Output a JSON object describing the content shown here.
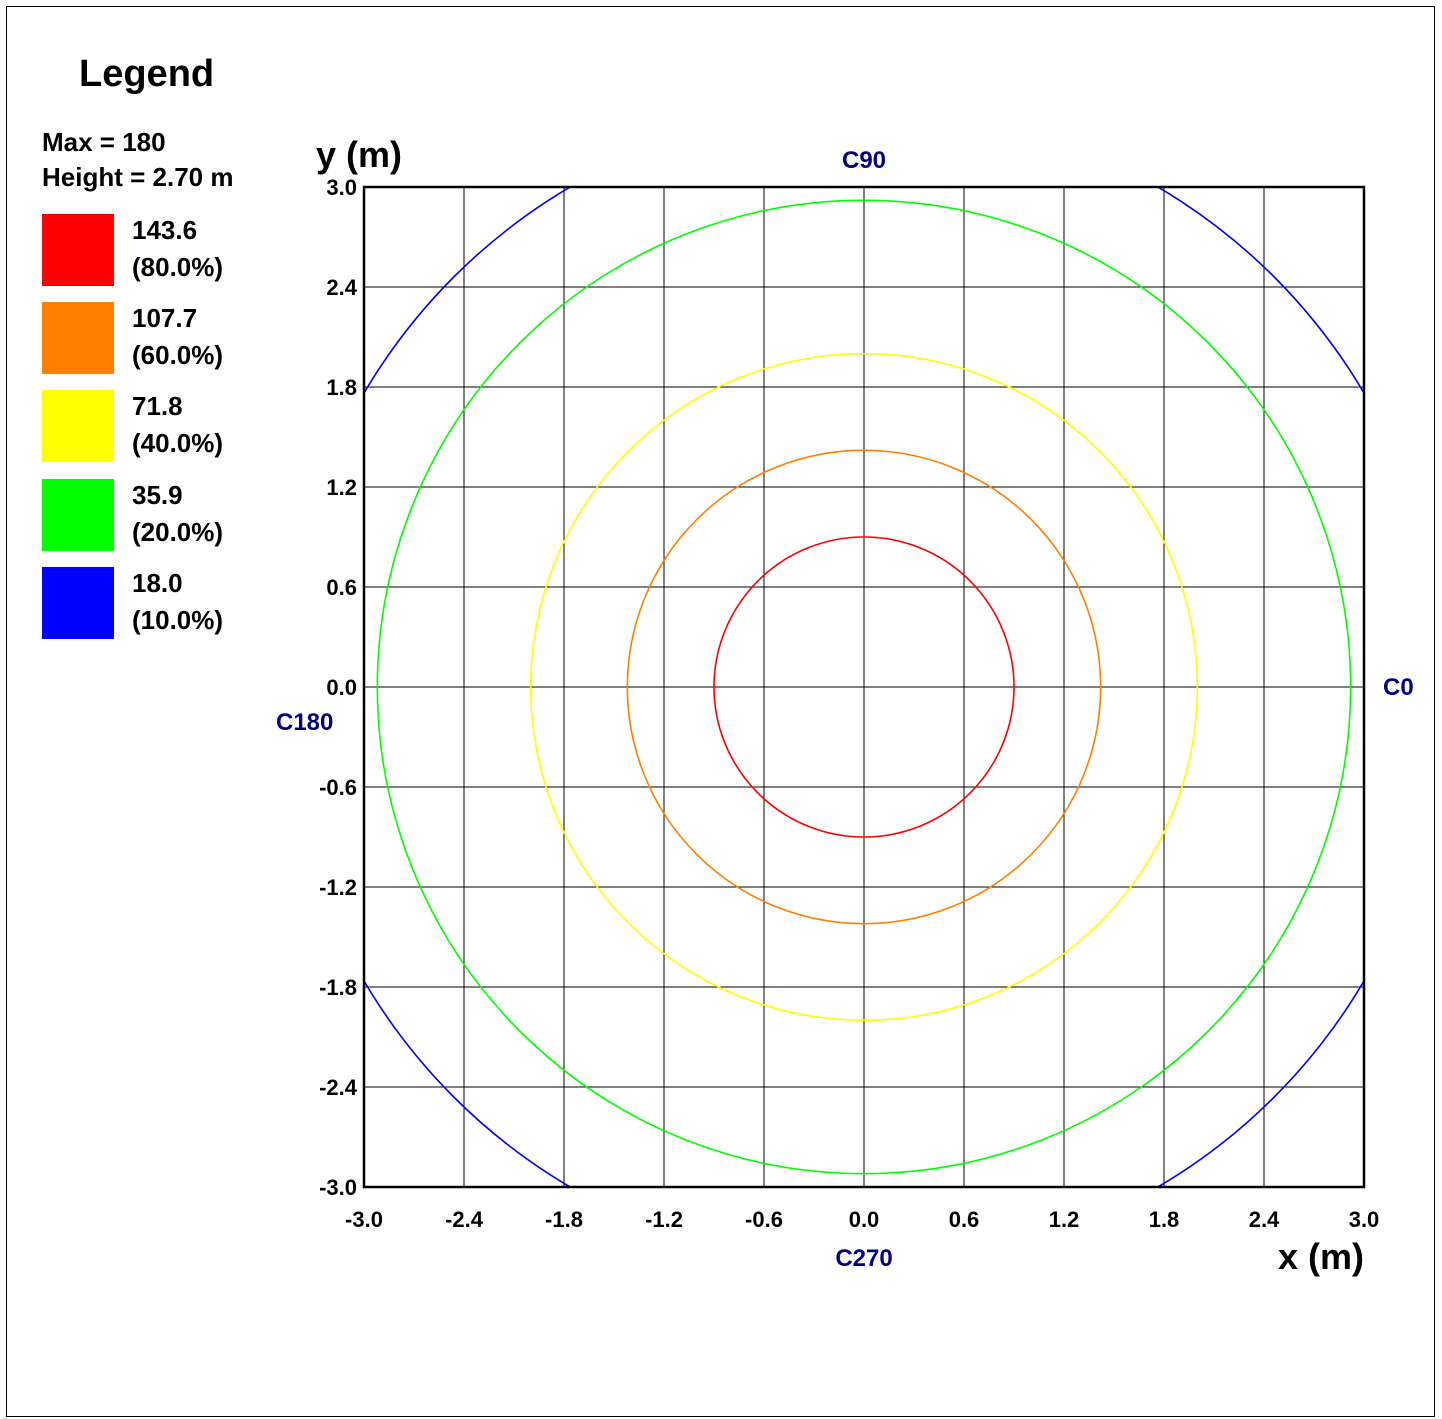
{
  "legend": {
    "title": "Legend",
    "max_label": "Max = 180",
    "height_label": "Height = 2.70 m",
    "items": [
      {
        "value": "143.6",
        "percent": "(80.0%)",
        "color": "#ff0000"
      },
      {
        "value": "107.7",
        "percent": "(60.0%)",
        "color": "#ff8000"
      },
      {
        "value": "71.8",
        "percent": "(40.0%)",
        "color": "#ffff00"
      },
      {
        "value": "35.9",
        "percent": "(20.0%)",
        "color": "#00ff00"
      },
      {
        "value": "18.0",
        "percent": "(10.0%)",
        "color": "#0000ff"
      }
    ]
  },
  "chart_data": {
    "type": "contour",
    "xlabel": "x (m)",
    "ylabel": "y (m)",
    "xlim": [
      -3.0,
      3.0
    ],
    "ylim": [
      -3.0,
      3.0
    ],
    "grid": true,
    "x_ticks": [
      "-3.0",
      "-2.4",
      "-1.8",
      "-1.2",
      "-0.6",
      "0.0",
      "0.6",
      "1.2",
      "1.8",
      "2.4",
      "3.0"
    ],
    "y_ticks": [
      "3.0",
      "2.4",
      "1.8",
      "1.2",
      "0.6",
      "0.0",
      "-0.6",
      "-1.2",
      "-1.8",
      "-2.4",
      "-3.0"
    ],
    "direction_labels": {
      "top": "C90",
      "right": "C0",
      "bottom": "C270",
      "left": "C180"
    },
    "label_color": "#000080",
    "series": [
      {
        "name": "143.6",
        "color": "#ff0000",
        "radius_m": 0.9
      },
      {
        "name": "107.7",
        "color": "#ff8000",
        "radius_m": 1.42
      },
      {
        "name": "71.8",
        "color": "#ffff00",
        "radius_m": 2.0
      },
      {
        "name": "35.9",
        "color": "#00ff00",
        "radius_m": 2.92
      },
      {
        "name": "18.0",
        "color": "#0000ff",
        "radius_m": 3.48
      }
    ]
  }
}
